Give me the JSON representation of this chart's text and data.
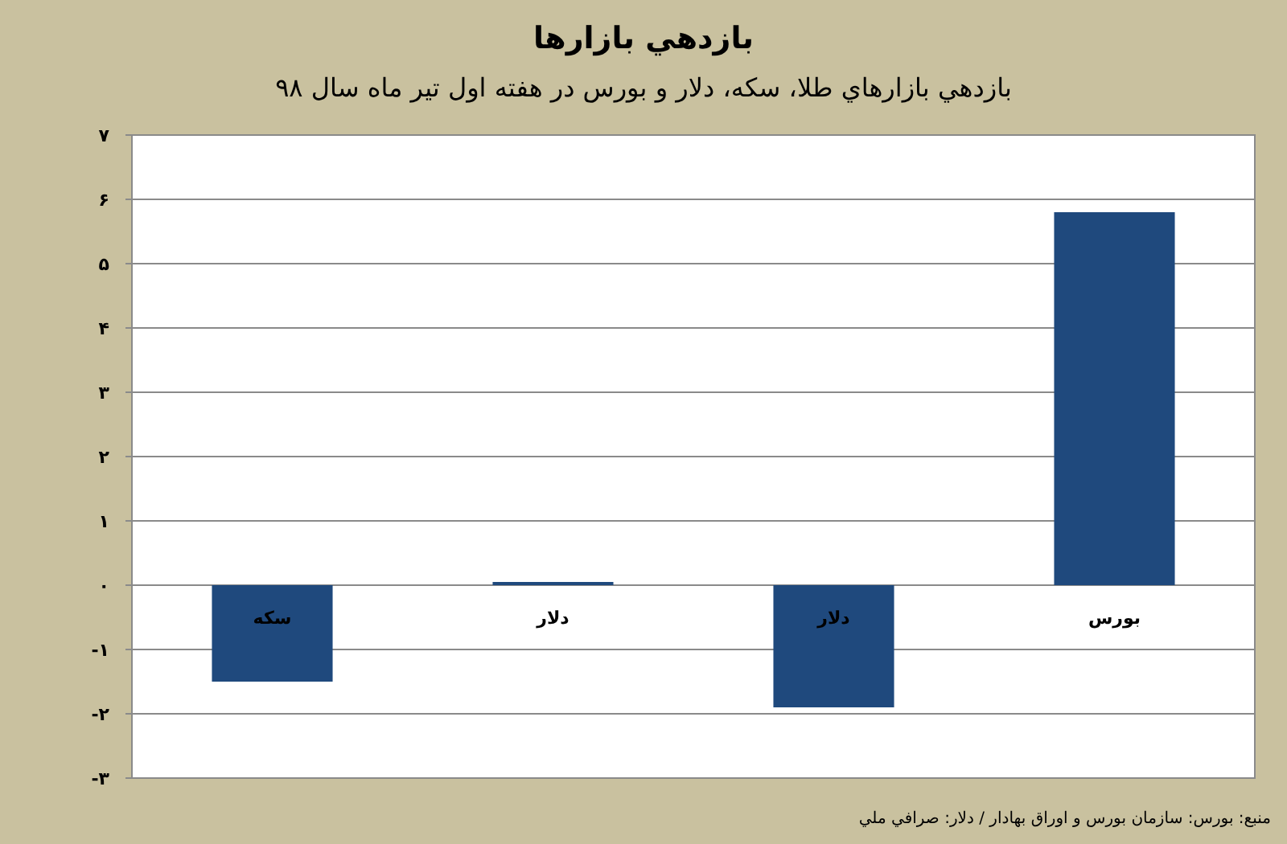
{
  "chart_data": {
    "type": "bar",
    "title": "بازدهي بازارها",
    "subtitle": "بازدهي بازارهاي طلا، سکه، دلار و بورس در هفته اول تير ماه سال ۹۸",
    "categories": [
      "سکه",
      "دلار",
      "دلار",
      "بورس"
    ],
    "values": [
      -1.5,
      0.05,
      -1.9,
      5.8
    ],
    "color": "#1f497d",
    "ylim": [
      -3,
      7
    ],
    "yticks": [
      {
        "value": -3,
        "label": "-۳"
      },
      {
        "value": -2,
        "label": "-۲"
      },
      {
        "value": -1,
        "label": "-۱"
      },
      {
        "value": 0,
        "label": "۰"
      },
      {
        "value": 1,
        "label": "۱"
      },
      {
        "value": 2,
        "label": "۲"
      },
      {
        "value": 3,
        "label": "۳"
      },
      {
        "value": 4,
        "label": "۴"
      },
      {
        "value": 5,
        "label": "۵"
      },
      {
        "value": 6,
        "label": "۶"
      },
      {
        "value": 7,
        "label": "۷"
      }
    ],
    "grid": "y",
    "annotations": [
      "منبع: بورس: سازمان بورس و اوراق بهادار / دلار: صرافي ملي"
    ]
  }
}
